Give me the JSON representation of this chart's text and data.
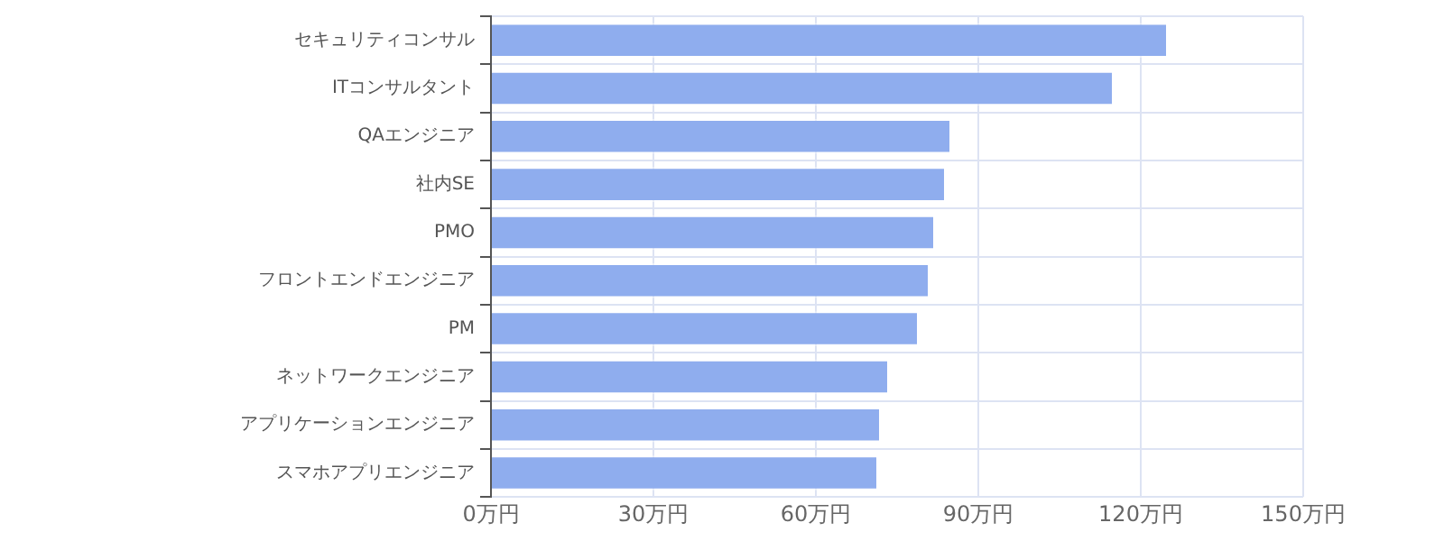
{
  "chart_data": {
    "type": "bar",
    "orientation": "horizontal",
    "categories": [
      "セキュリティコンサル",
      "ITコンサルタント",
      "QAエンジニア",
      "社内SE",
      "PMO",
      "フロントエンドエンジニア",
      "PM",
      "ネットワークエンジニア",
      "アプリケーションエンジニア",
      "スマホアプリエンジニア"
    ],
    "values": [
      125,
      115,
      85,
      84,
      82,
      81,
      79,
      73.5,
      72,
      71.5
    ],
    "color": "#8fadee",
    "xlim": [
      0,
      150
    ],
    "xticks": [
      {
        "value": 0,
        "label": "0万円"
      },
      {
        "value": 30,
        "label": "30万円"
      },
      {
        "value": 60,
        "label": "60万円"
      },
      {
        "value": 90,
        "label": "90万円"
      },
      {
        "value": 120,
        "label": "120万円"
      },
      {
        "value": 150,
        "label": "150万円"
      }
    ],
    "grid": true,
    "legend": false
  }
}
